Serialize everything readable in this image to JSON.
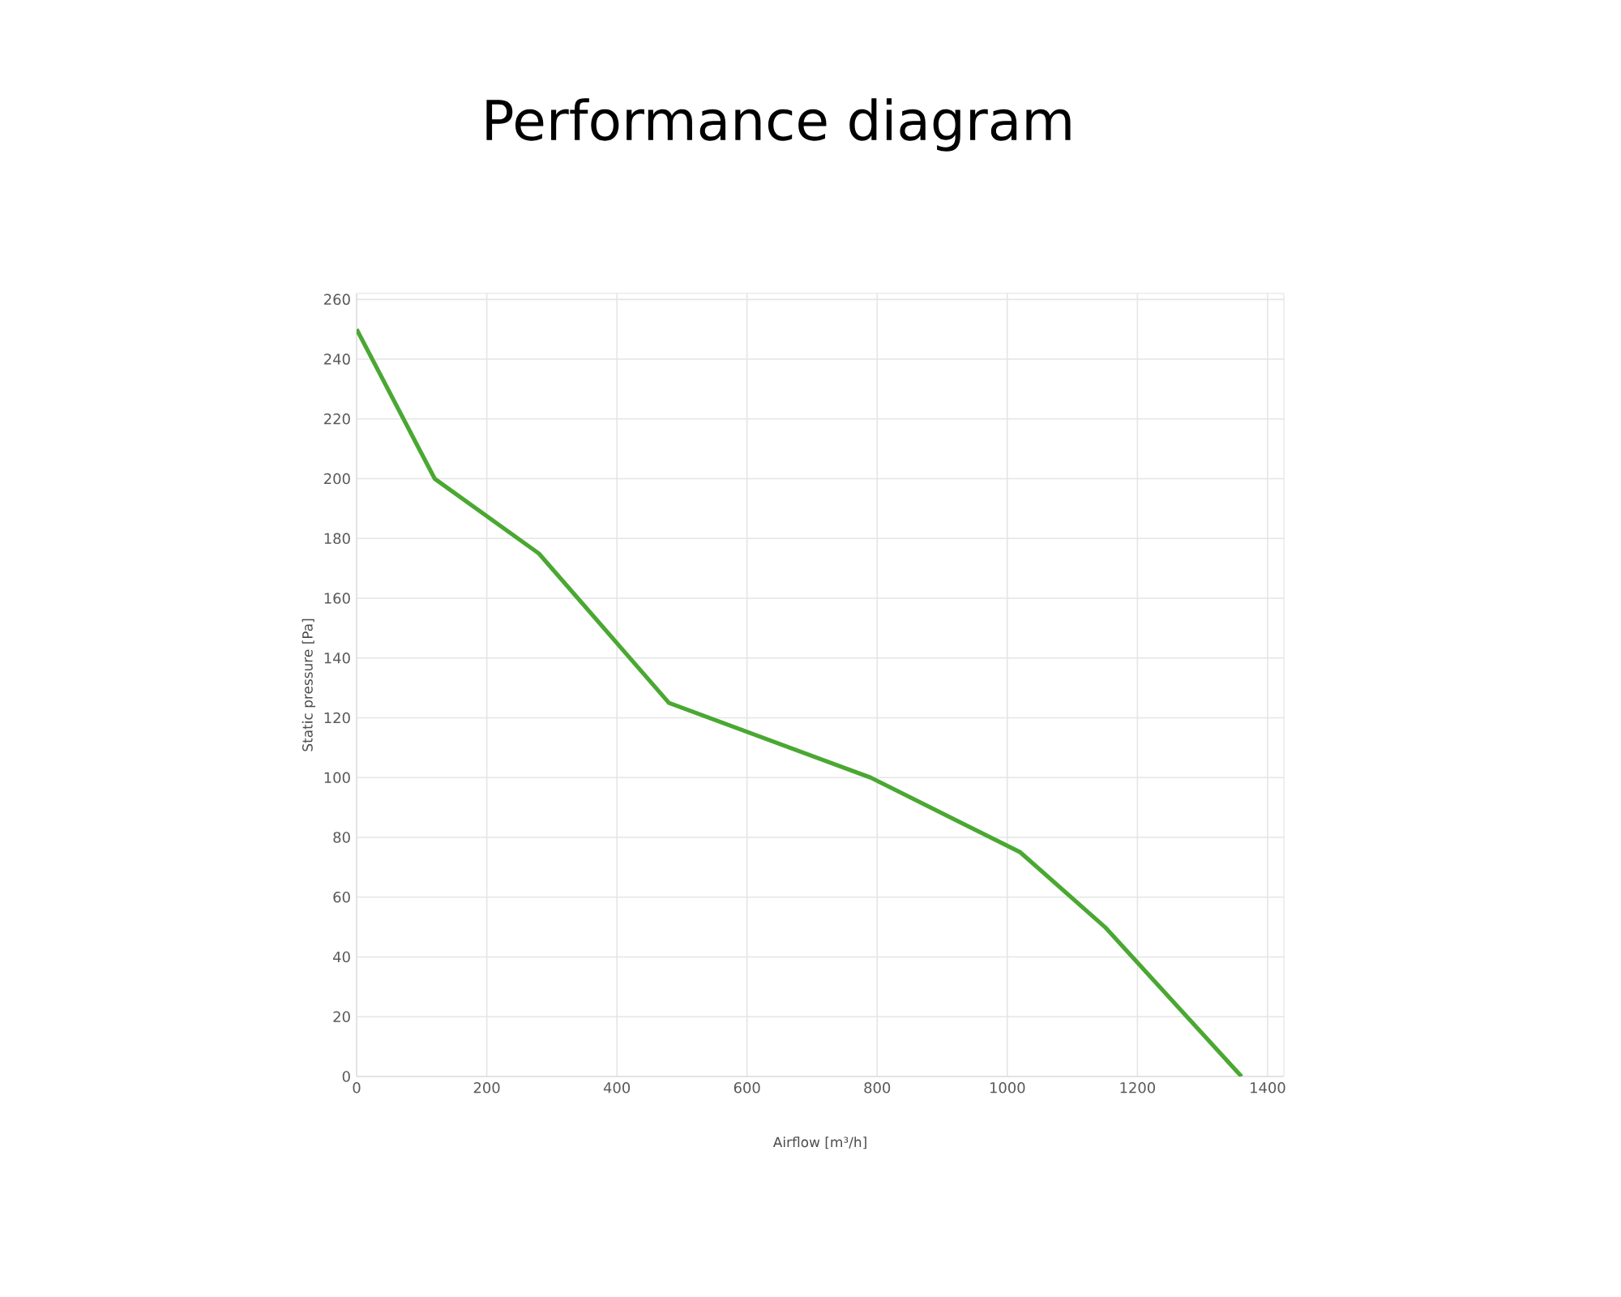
{
  "chart_data": {
    "type": "line",
    "title": "Performance diagram",
    "xlabel": "Airflow [m³/h]",
    "ylabel": "Static pressure [Pa]",
    "x": [
      0,
      120,
      280,
      480,
      790,
      1020,
      1150,
      1360
    ],
    "series": [
      {
        "color": "#4aa832",
        "values": [
          250,
          200,
          175,
          125,
          100,
          75,
          50,
          0
        ]
      }
    ],
    "xlim": [
      0,
      1425
    ],
    "ylim": [
      0,
      262
    ],
    "xticks": [
      0,
      200,
      400,
      600,
      800,
      1000,
      1200,
      1400
    ],
    "yticks": [
      0,
      20,
      40,
      60,
      80,
      100,
      120,
      140,
      160,
      180,
      200,
      220,
      240,
      260
    ],
    "grid": true,
    "marker": "none",
    "line_style": "solid"
  }
}
